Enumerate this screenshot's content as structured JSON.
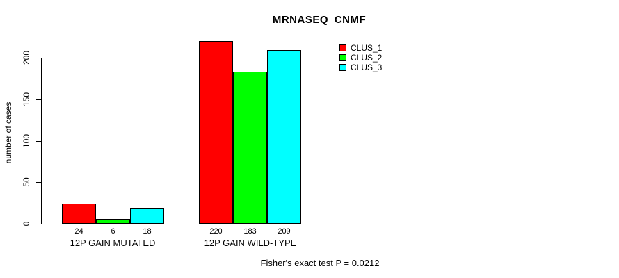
{
  "chart_data": {
    "type": "bar",
    "title": "MRNASEQ_CNMF",
    "ylabel": "number of cases",
    "xlabel": "",
    "categories": [
      "12P GAIN MUTATED",
      "12P GAIN WILD-TYPE"
    ],
    "series": [
      {
        "name": "CLUS_1",
        "color": "#FF0000",
        "values": [
          24,
          220
        ]
      },
      {
        "name": "CLUS_2",
        "color": "#00FF00",
        "values": [
          6,
          183
        ]
      },
      {
        "name": "CLUS_3",
        "color": "#00FFFF",
        "values": [
          18,
          209
        ]
      }
    ],
    "yticks": [
      0,
      50,
      100,
      150,
      200
    ],
    "ylim": [
      0,
      239
    ],
    "grid": false,
    "legend_position": "top-right",
    "bar_value_labels_shown": true,
    "annotation": "Fisher's exact test P = 0.0212"
  }
}
